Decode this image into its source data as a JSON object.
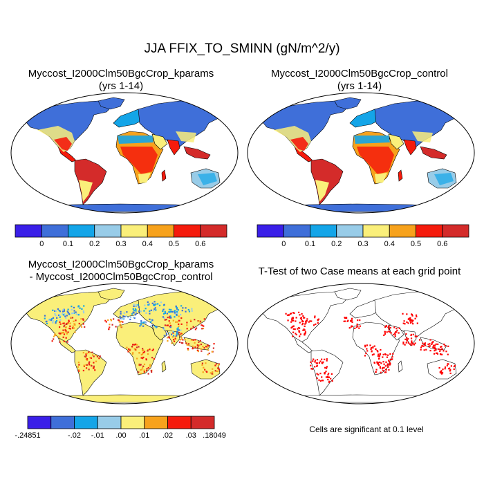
{
  "main_title": "JJA FFIX_TO_SMINN (gN/m^2/y)",
  "panels": [
    {
      "title": "Myccost_I2000Clm50BgcCrop_kparams",
      "subtitle": "(yrs 1-14)"
    },
    {
      "title": "Myccost_I2000Clm50BgcCrop_control",
      "subtitle": "(yrs 1-14)"
    },
    {
      "title": "Myccost_I2000Clm50BgcCrop_kparams",
      "subtitle": "- Myccost_I2000Clm50BgcCrop_control"
    },
    {
      "title": "T-Test of two Case means at each grid point",
      "subtitle": ""
    }
  ],
  "colorbar_levels": {
    "colors": [
      "#3a1fe8",
      "#3f6fd9",
      "#14a5e8",
      "#98cce8",
      "#faef7a",
      "#f7a21c",
      "#f51b0c",
      "#d42b2a"
    ],
    "labels": [
      "0",
      "0.1",
      "0.2",
      "0.3",
      "0.4",
      "0.5",
      "0.6"
    ]
  },
  "colorbar_diff": {
    "colors": [
      "#3a1fe8",
      "#3f6fd9",
      "#14a5e8",
      "#98cce8",
      "#faef7a",
      "#f7a21c",
      "#f51b0c",
      "#d42b2a"
    ],
    "labels": [
      "-.24851",
      "-.02",
      "-.01",
      ".00",
      ".01",
      ".02",
      ".03",
      ".18049"
    ]
  },
  "significance_note": "Cells are significant at 0.1 level",
  "significance_color": "#ff0000"
}
